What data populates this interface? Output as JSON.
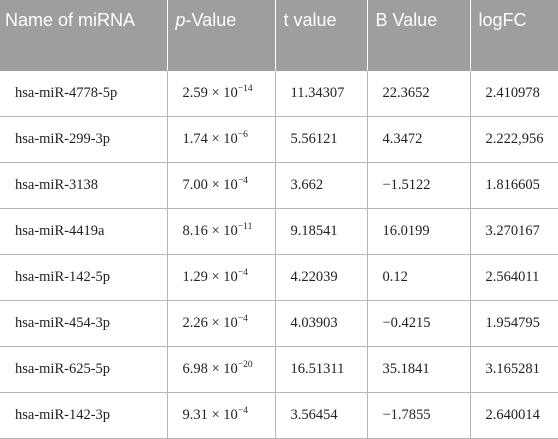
{
  "header": {
    "name": "Name of miRNA",
    "pvalue_italic": "p",
    "pvalue_rest": "-Value",
    "tvalue": "t value",
    "bvalue": "B Value",
    "logfc": "logFC"
  },
  "rows": [
    {
      "name": "hsa-miR-4778-5p",
      "p_mant": "2.59 × 10",
      "p_exp": "−14",
      "t": "11.34307",
      "b": "22.3652",
      "logfc": "2.410978"
    },
    {
      "name": "hsa-miR-299-3p",
      "p_mant": "1.74 × 10",
      "p_exp": "−6",
      "t": "5.56121",
      "b": "4.3472",
      "logfc": "2.222,956"
    },
    {
      "name": "hsa-miR-3138",
      "p_mant": "7.00 × 10",
      "p_exp": "−4",
      "t": "3.662",
      "b": "−1.5122",
      "logfc": "1.816605"
    },
    {
      "name": "hsa-miR-4419a",
      "p_mant": "8.16 × 10",
      "p_exp": "−11",
      "t": "9.18541",
      "b": "16.0199",
      "logfc": "3.270167"
    },
    {
      "name": "hsa-miR-142-5p",
      "p_mant": "1.29 × 10",
      "p_exp": "−4",
      "t": "4.22039",
      "b": "0.12",
      "logfc": "2.564011"
    },
    {
      "name": "hsa-miR-454-3p",
      "p_mant": "2.26 × 10",
      "p_exp": "−4",
      "t": "4.03903",
      "b": "−0.4215",
      "logfc": "1.954795"
    },
    {
      "name": "hsa-miR-625-5p",
      "p_mant": "6.98 × 10",
      "p_exp": "−20",
      "t": "16.51311",
      "b": "35.1841",
      "logfc": "3.165281"
    },
    {
      "name": "hsa-miR-142-3p",
      "p_mant": "9.31 × 10",
      "p_exp": "−4",
      "t": "3.56454",
      "b": "−1.7855",
      "logfc": "2.640014"
    }
  ],
  "colors": {
    "header_bg": "#9e9e9e",
    "header_text": "#ffffff",
    "rule": "#b5b5b5"
  }
}
